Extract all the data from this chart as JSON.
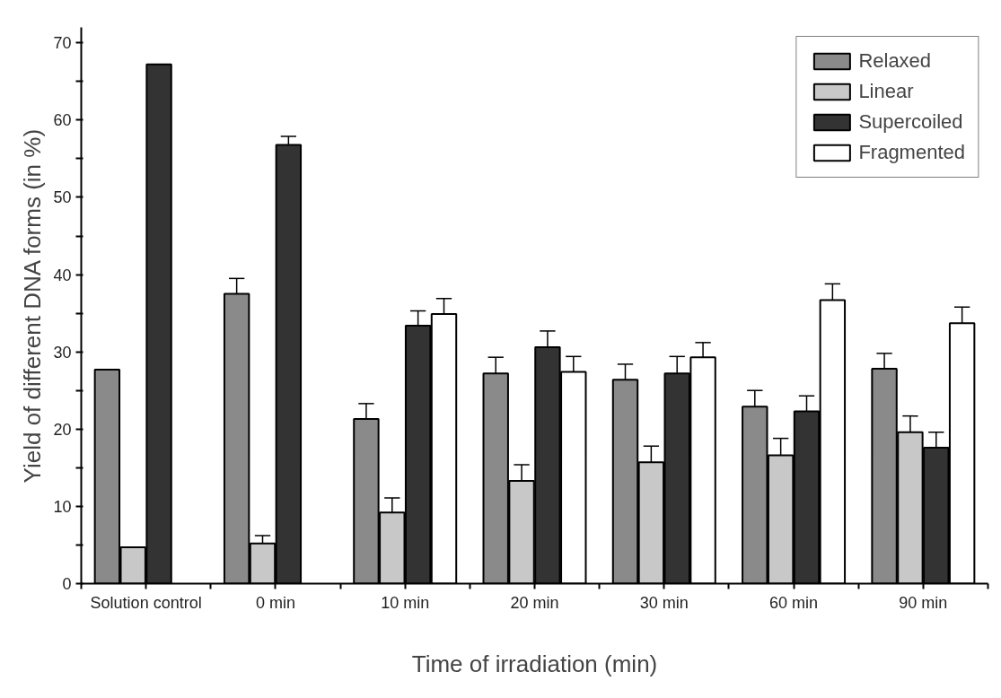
{
  "chart_data": {
    "type": "bar",
    "xlabel": "Time of irradiation (min)",
    "ylabel": "Yield of different DNA forms (in %)",
    "categories": [
      "Solution control",
      "0 min",
      "10 min",
      "20 min",
      "30 min",
      "60 min",
      "90 min"
    ],
    "series": [
      {
        "name": "Relaxed",
        "color": "#8a8a8a",
        "values": [
          27.7,
          37.5,
          21.3,
          27.2,
          26.4,
          22.9,
          27.8
        ],
        "errors": [
          null,
          [
            37.5,
            39.5
          ],
          [
            21.3,
            23.3
          ],
          [
            27.2,
            29.3
          ],
          [
            26.4,
            28.4
          ],
          [
            22.9,
            25.0
          ],
          [
            27.8,
            29.8
          ]
        ]
      },
      {
        "name": "Linear",
        "color": "#c8c8c8",
        "values": [
          4.7,
          5.2,
          9.2,
          13.3,
          15.7,
          16.6,
          19.6
        ],
        "errors": [
          null,
          [
            5.2,
            6.2
          ],
          [
            9.2,
            11.1
          ],
          [
            13.3,
            15.4
          ],
          [
            15.7,
            17.8
          ],
          [
            16.6,
            18.8
          ],
          [
            19.6,
            21.7
          ]
        ]
      },
      {
        "name": "Supercoiled",
        "color": "#333333",
        "values": [
          67.2,
          56.8,
          33.4,
          30.6,
          27.2,
          22.3,
          17.6
        ],
        "errors": [
          null,
          [
            56.8,
            57.9
          ],
          [
            33.4,
            35.3
          ],
          [
            30.6,
            32.7
          ],
          [
            27.2,
            29.4
          ],
          [
            22.3,
            24.3
          ],
          [
            17.6,
            19.6
          ]
        ]
      },
      {
        "name": "Fragmented",
        "color": "#ffffff",
        "values": [
          null,
          null,
          34.9,
          27.4,
          29.3,
          36.7,
          33.7
        ],
        "errors": [
          null,
          null,
          [
            34.9,
            36.9
          ],
          [
            27.4,
            29.4
          ],
          [
            29.3,
            31.2
          ],
          [
            36.7,
            38.8
          ],
          [
            33.7,
            35.8
          ]
        ]
      }
    ],
    "ylim": [
      0,
      72
    ],
    "yticks": [
      0,
      {
        "value": 5,
        "label": null
      },
      10,
      {
        "value": 15,
        "label": null
      },
      20,
      {
        "value": 25,
        "label": null
      },
      30,
      {
        "value": 35,
        "label": null
      },
      40,
      {
        "value": 45,
        "label": null
      },
      50,
      {
        "value": 55,
        "label": null
      },
      60,
      {
        "value": 65,
        "label": null
      },
      70
    ],
    "grid": false,
    "legend": "top right"
  }
}
